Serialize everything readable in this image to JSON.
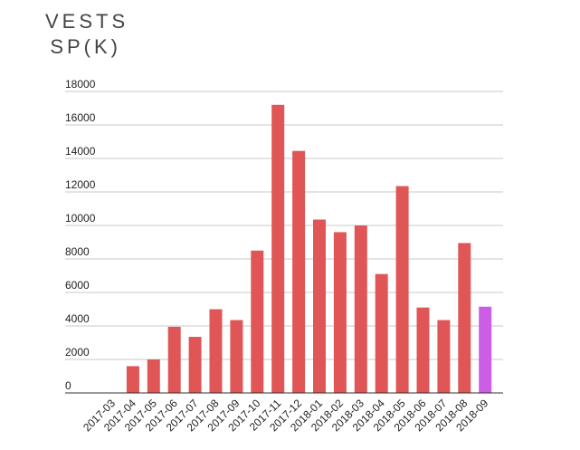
{
  "title": {
    "line1": "VESTS",
    "line2": "SP(K)"
  },
  "colors": {
    "bar": "#e05656",
    "highlight_bar": "#cc5ee6",
    "grid": "#c8c8c8",
    "text": "#444444"
  },
  "chart_data": {
    "type": "bar",
    "title": "VESTS SP(K)",
    "xlabel": "",
    "ylabel": "",
    "ylim": [
      0,
      18000
    ],
    "yticks": [
      0,
      2000,
      4000,
      6000,
      8000,
      10000,
      12000,
      14000,
      16000,
      18000
    ],
    "grid": true,
    "legend": "none",
    "categories": [
      "2017-03",
      "2017-04",
      "2017-05",
      "2017-06",
      "2017-07",
      "2017-08",
      "2017-09",
      "2017-10",
      "2017-11",
      "2017-12",
      "2018-01",
      "2018-02",
      "2018-03",
      "2018-04",
      "2018-05",
      "2018-06",
      "2018-07",
      "2018-08",
      "2018-09"
    ],
    "values": [
      0,
      1600,
      2000,
      3950,
      3350,
      5000,
      4350,
      8500,
      17200,
      14450,
      10350,
      9600,
      10000,
      7100,
      12350,
      5100,
      4350,
      8950,
      5150
    ],
    "highlight_index": 18
  }
}
